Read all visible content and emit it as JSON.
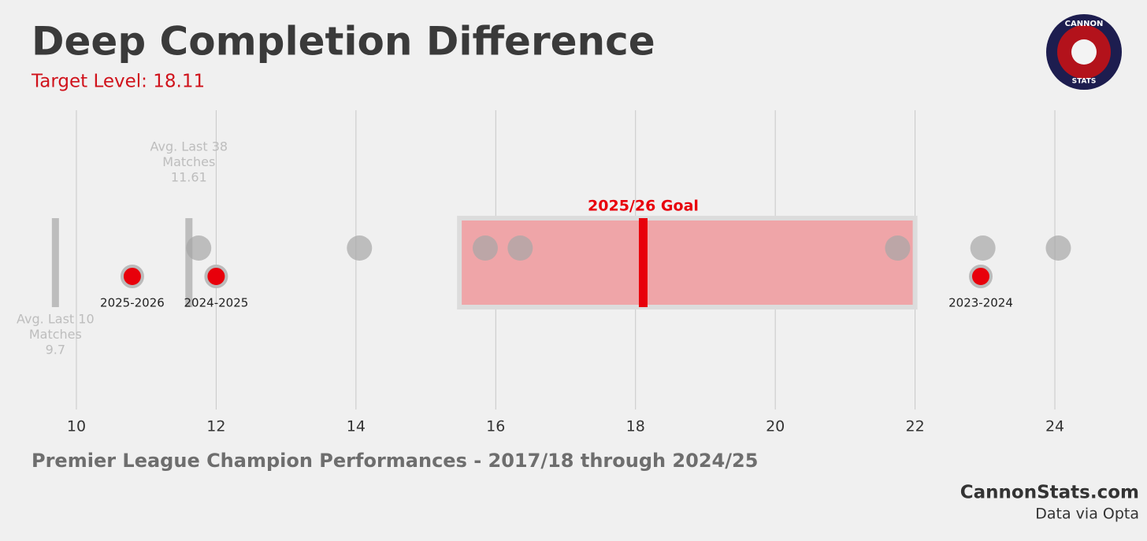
{
  "chart_data": {
    "type": "strip",
    "title": "Deep Completion Difference",
    "subtitle": "Target Level: 18.11",
    "xlabel": "Premier League Champion Performances - 2017/18 through 2024/25",
    "source_site": "CannonStats.com",
    "source_note": "Data via Opta",
    "logo": {
      "top": "CANNON",
      "bottom": "STATS"
    },
    "xlim": [
      9.5,
      25.2
    ],
    "xticks": [
      10,
      12,
      14,
      16,
      18,
      20,
      22,
      24
    ],
    "grid": true,
    "champions": {
      "color": "#a6a6a6",
      "values": [
        11.75,
        14.05,
        15.85,
        16.35,
        21.75,
        22.97,
        24.05
      ]
    },
    "seasons": {
      "color": "#e8000b",
      "labels": [
        "2025-2026",
        "2024-2025",
        "2023-2024"
      ],
      "values": [
        10.8,
        12.0,
        22.94
      ]
    },
    "target_band": {
      "color": "#efa5a8",
      "range": [
        15.48,
        22.0
      ]
    },
    "goal": {
      "label": "2025/26 Goal",
      "value": 18.11,
      "color": "#e8000b"
    },
    "averages": [
      {
        "label_lines": [
          "Avg. Last 10",
          "Matches"
        ],
        "value": 9.7,
        "color": "#bdbdbd"
      },
      {
        "label_lines": [
          "Avg. Last 38",
          "Matches"
        ],
        "value": 11.61,
        "color": "#bdbdbd"
      }
    ]
  }
}
